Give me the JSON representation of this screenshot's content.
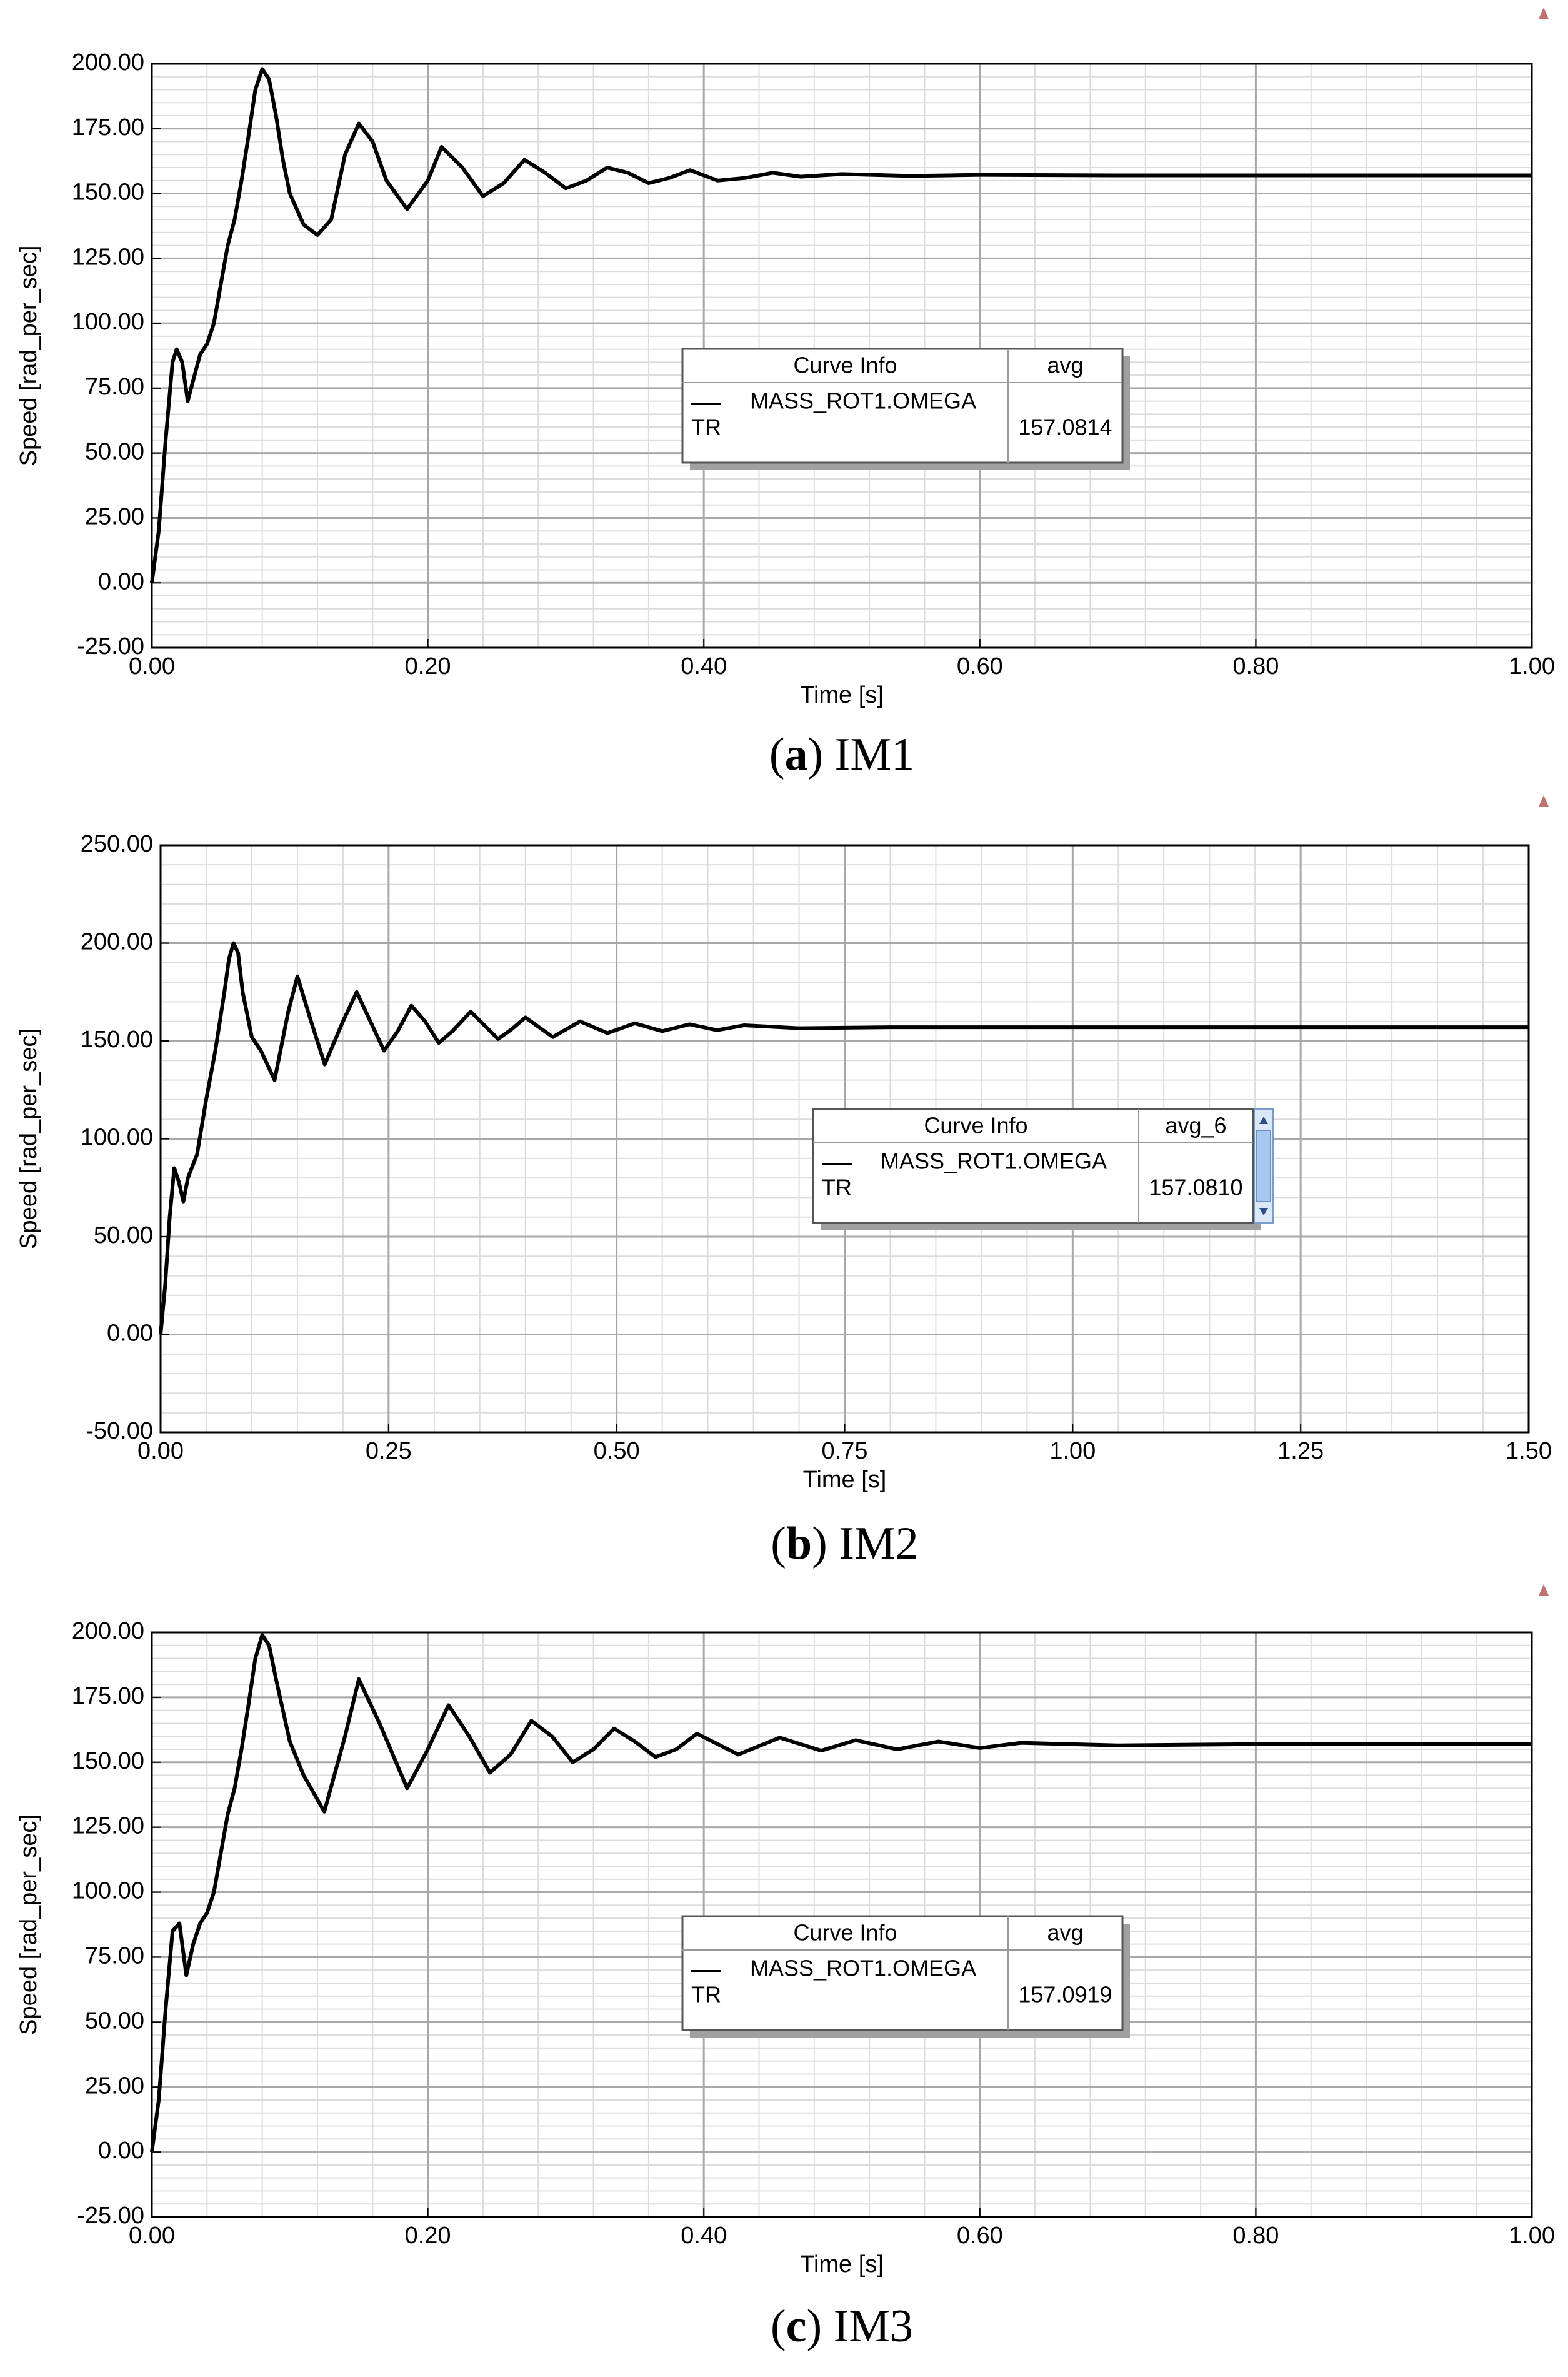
{
  "chart_data": [
    {
      "type": "line",
      "xlabel": "Time [s]",
      "ylabel": "Speed [rad_per_sec]",
      "caption": [
        "(",
        "a",
        ") IM1"
      ],
      "xlim": [
        0,
        1
      ],
      "ylim": [
        -25,
        200
      ],
      "xticks": [
        {
          "value": 0,
          "label": "0.00"
        },
        {
          "value": 0.2,
          "label": "0.20"
        },
        {
          "value": 0.4,
          "label": "0.40"
        },
        {
          "value": 0.6,
          "label": "0.60"
        },
        {
          "value": 0.8,
          "label": "0.80"
        },
        {
          "value": 1,
          "label": "1.00"
        }
      ],
      "yticks": [
        {
          "value": -25,
          "label": "-25.00"
        },
        {
          "value": 0,
          "label": "0.00"
        },
        {
          "value": 25,
          "label": "25.00"
        },
        {
          "value": 50,
          "label": "50.00"
        },
        {
          "value": 75,
          "label": "75.00"
        },
        {
          "value": 100,
          "label": "100.00"
        },
        {
          "value": 125,
          "label": "125.00"
        },
        {
          "value": 150,
          "label": "150.00"
        },
        {
          "value": 175,
          "label": "175.00"
        },
        {
          "value": 200,
          "label": "200.00"
        }
      ],
      "grid": true,
      "x": [
        0,
        0.005,
        0.01,
        0.015,
        0.018,
        0.022,
        0.026,
        0.03,
        0.035,
        0.04,
        0.045,
        0.05,
        0.055,
        0.06,
        0.065,
        0.07,
        0.075,
        0.08,
        0.085,
        0.09,
        0.095,
        0.1,
        0.11,
        0.12,
        0.13,
        0.14,
        0.15,
        0.16,
        0.17,
        0.185,
        0.2,
        0.21,
        0.225,
        0.24,
        0.255,
        0.27,
        0.285,
        0.3,
        0.315,
        0.33,
        0.345,
        0.36,
        0.375,
        0.39,
        0.41,
        0.43,
        0.45,
        0.47,
        0.5,
        0.55,
        0.6,
        0.7,
        0.8,
        0.9,
        1
      ],
      "series": [
        {
          "name": "MASS_ROT1.OMEGA",
          "color": "#000000",
          "values": [
            0,
            20,
            55,
            85,
            90,
            85,
            70,
            78,
            88,
            92,
            100,
            115,
            130,
            140,
            155,
            172,
            190,
            198,
            194,
            180,
            163,
            150,
            138,
            134,
            140,
            165,
            177,
            170,
            155,
            144,
            155,
            168,
            160,
            149,
            154,
            163,
            158,
            152,
            155,
            160,
            158,
            154,
            156,
            159,
            155,
            156,
            158,
            156.5,
            157.5,
            156.8,
            157.2,
            157,
            157,
            157,
            157
          ]
        }
      ],
      "legend": {
        "header": "Curve Info",
        "stat_header": "avg",
        "source": "TR",
        "stat": 157.0814
      }
    },
    {
      "type": "line",
      "xlabel": "Time [s]",
      "ylabel": "Speed [rad_per_sec]",
      "caption": [
        "(",
        "b",
        ") IM2"
      ],
      "xlim": [
        0,
        1.5
      ],
      "ylim": [
        -50,
        250
      ],
      "xticks": [
        {
          "value": 0,
          "label": "0.00"
        },
        {
          "value": 0.25,
          "label": "0.25"
        },
        {
          "value": 0.5,
          "label": "0.50"
        },
        {
          "value": 0.75,
          "label": "0.75"
        },
        {
          "value": 1,
          "label": "1.00"
        },
        {
          "value": 1.25,
          "label": "1.25"
        },
        {
          "value": 1.5,
          "label": "1.50"
        }
      ],
      "yticks": [
        {
          "value": -50,
          "label": "-50.00"
        },
        {
          "value": 0,
          "label": "0.00"
        },
        {
          "value": 50,
          "label": "50.00"
        },
        {
          "value": 100,
          "label": "100.00"
        },
        {
          "value": 150,
          "label": "150.00"
        },
        {
          "value": 200,
          "label": "200.00"
        },
        {
          "value": 250,
          "label": "250.00"
        }
      ],
      "grid": true,
      "x": [
        0,
        0.005,
        0.01,
        0.015,
        0.02,
        0.025,
        0.03,
        0.04,
        0.05,
        0.06,
        0.07,
        0.075,
        0.08,
        0.085,
        0.09,
        0.1,
        0.11,
        0.125,
        0.14,
        0.15,
        0.165,
        0.18,
        0.2,
        0.215,
        0.23,
        0.245,
        0.26,
        0.275,
        0.29,
        0.305,
        0.32,
        0.34,
        0.355,
        0.37,
        0.385,
        0.4,
        0.43,
        0.46,
        0.49,
        0.52,
        0.55,
        0.58,
        0.61,
        0.64,
        0.7,
        0.8,
        1,
        1.25,
        1.5
      ],
      "series": [
        {
          "name": "MASS_ROT1.OMEGA",
          "color": "#000000",
          "values": [
            0,
            25,
            60,
            85,
            78,
            68,
            80,
            92,
            120,
            145,
            175,
            192,
            200,
            195,
            175,
            152,
            145,
            130,
            165,
            183,
            160,
            138,
            160,
            175,
            160,
            145,
            155,
            168,
            160,
            149,
            155,
            165,
            158,
            151,
            156,
            162,
            152,
            160,
            154,
            159,
            155,
            158.5,
            155.5,
            158,
            156.5,
            157,
            157,
            157,
            157
          ]
        }
      ],
      "legend": {
        "header": "Curve Info",
        "stat_header": "avg_6",
        "source": "TR",
        "stat": {
          "value": 157.081,
          "label": "157.0810"
        }
      }
    },
    {
      "type": "line",
      "xlabel": "Time [s]",
      "ylabel": "Speed [rad_per_sec]",
      "caption": [
        "(",
        "c",
        ") IM3"
      ],
      "xlim": [
        0,
        1
      ],
      "ylim": [
        -25,
        200
      ],
      "xticks": [
        {
          "value": 0,
          "label": "0.00"
        },
        {
          "value": 0.2,
          "label": "0.20"
        },
        {
          "value": 0.4,
          "label": "0.40"
        },
        {
          "value": 0.6,
          "label": "0.60"
        },
        {
          "value": 0.8,
          "label": "0.80"
        },
        {
          "value": 1,
          "label": "1.00"
        }
      ],
      "yticks": [
        {
          "value": -25,
          "label": "-25.00"
        },
        {
          "value": 0,
          "label": "0.00"
        },
        {
          "value": 25,
          "label": "25.00"
        },
        {
          "value": 50,
          "label": "50.00"
        },
        {
          "value": 75,
          "label": "75.00"
        },
        {
          "value": 100,
          "label": "100.00"
        },
        {
          "value": 125,
          "label": "125.00"
        },
        {
          "value": 150,
          "label": "150.00"
        },
        {
          "value": 175,
          "label": "175.00"
        },
        {
          "value": 200,
          "label": "200.00"
        }
      ],
      "grid": true,
      "x": [
        0,
        0.005,
        0.01,
        0.015,
        0.02,
        0.025,
        0.03,
        0.035,
        0.04,
        0.045,
        0.05,
        0.055,
        0.06,
        0.065,
        0.07,
        0.075,
        0.08,
        0.085,
        0.09,
        0.1,
        0.11,
        0.125,
        0.14,
        0.15,
        0.165,
        0.185,
        0.2,
        0.215,
        0.23,
        0.245,
        0.26,
        0.275,
        0.29,
        0.305,
        0.32,
        0.335,
        0.35,
        0.365,
        0.38,
        0.395,
        0.425,
        0.455,
        0.485,
        0.51,
        0.54,
        0.57,
        0.6,
        0.63,
        0.7,
        0.8,
        0.9,
        1
      ],
      "series": [
        {
          "name": "MASS_ROT1.OMEGA",
          "color": "#000000",
          "values": [
            0,
            20,
            55,
            85,
            88,
            68,
            80,
            88,
            92,
            100,
            115,
            130,
            140,
            155,
            172,
            190,
            199,
            195,
            182,
            158,
            145,
            131,
            160,
            182,
            165,
            140,
            155,
            172,
            160,
            146,
            153,
            166,
            160,
            150,
            155,
            163,
            158,
            152,
            155,
            161,
            153,
            159.5,
            154.5,
            158.5,
            155,
            158,
            155.5,
            157.5,
            156.5,
            157,
            157,
            157
          ]
        }
      ],
      "legend": {
        "header": "Curve Info",
        "stat_header": "avg",
        "source": "TR",
        "stat": 157.0919
      }
    }
  ]
}
